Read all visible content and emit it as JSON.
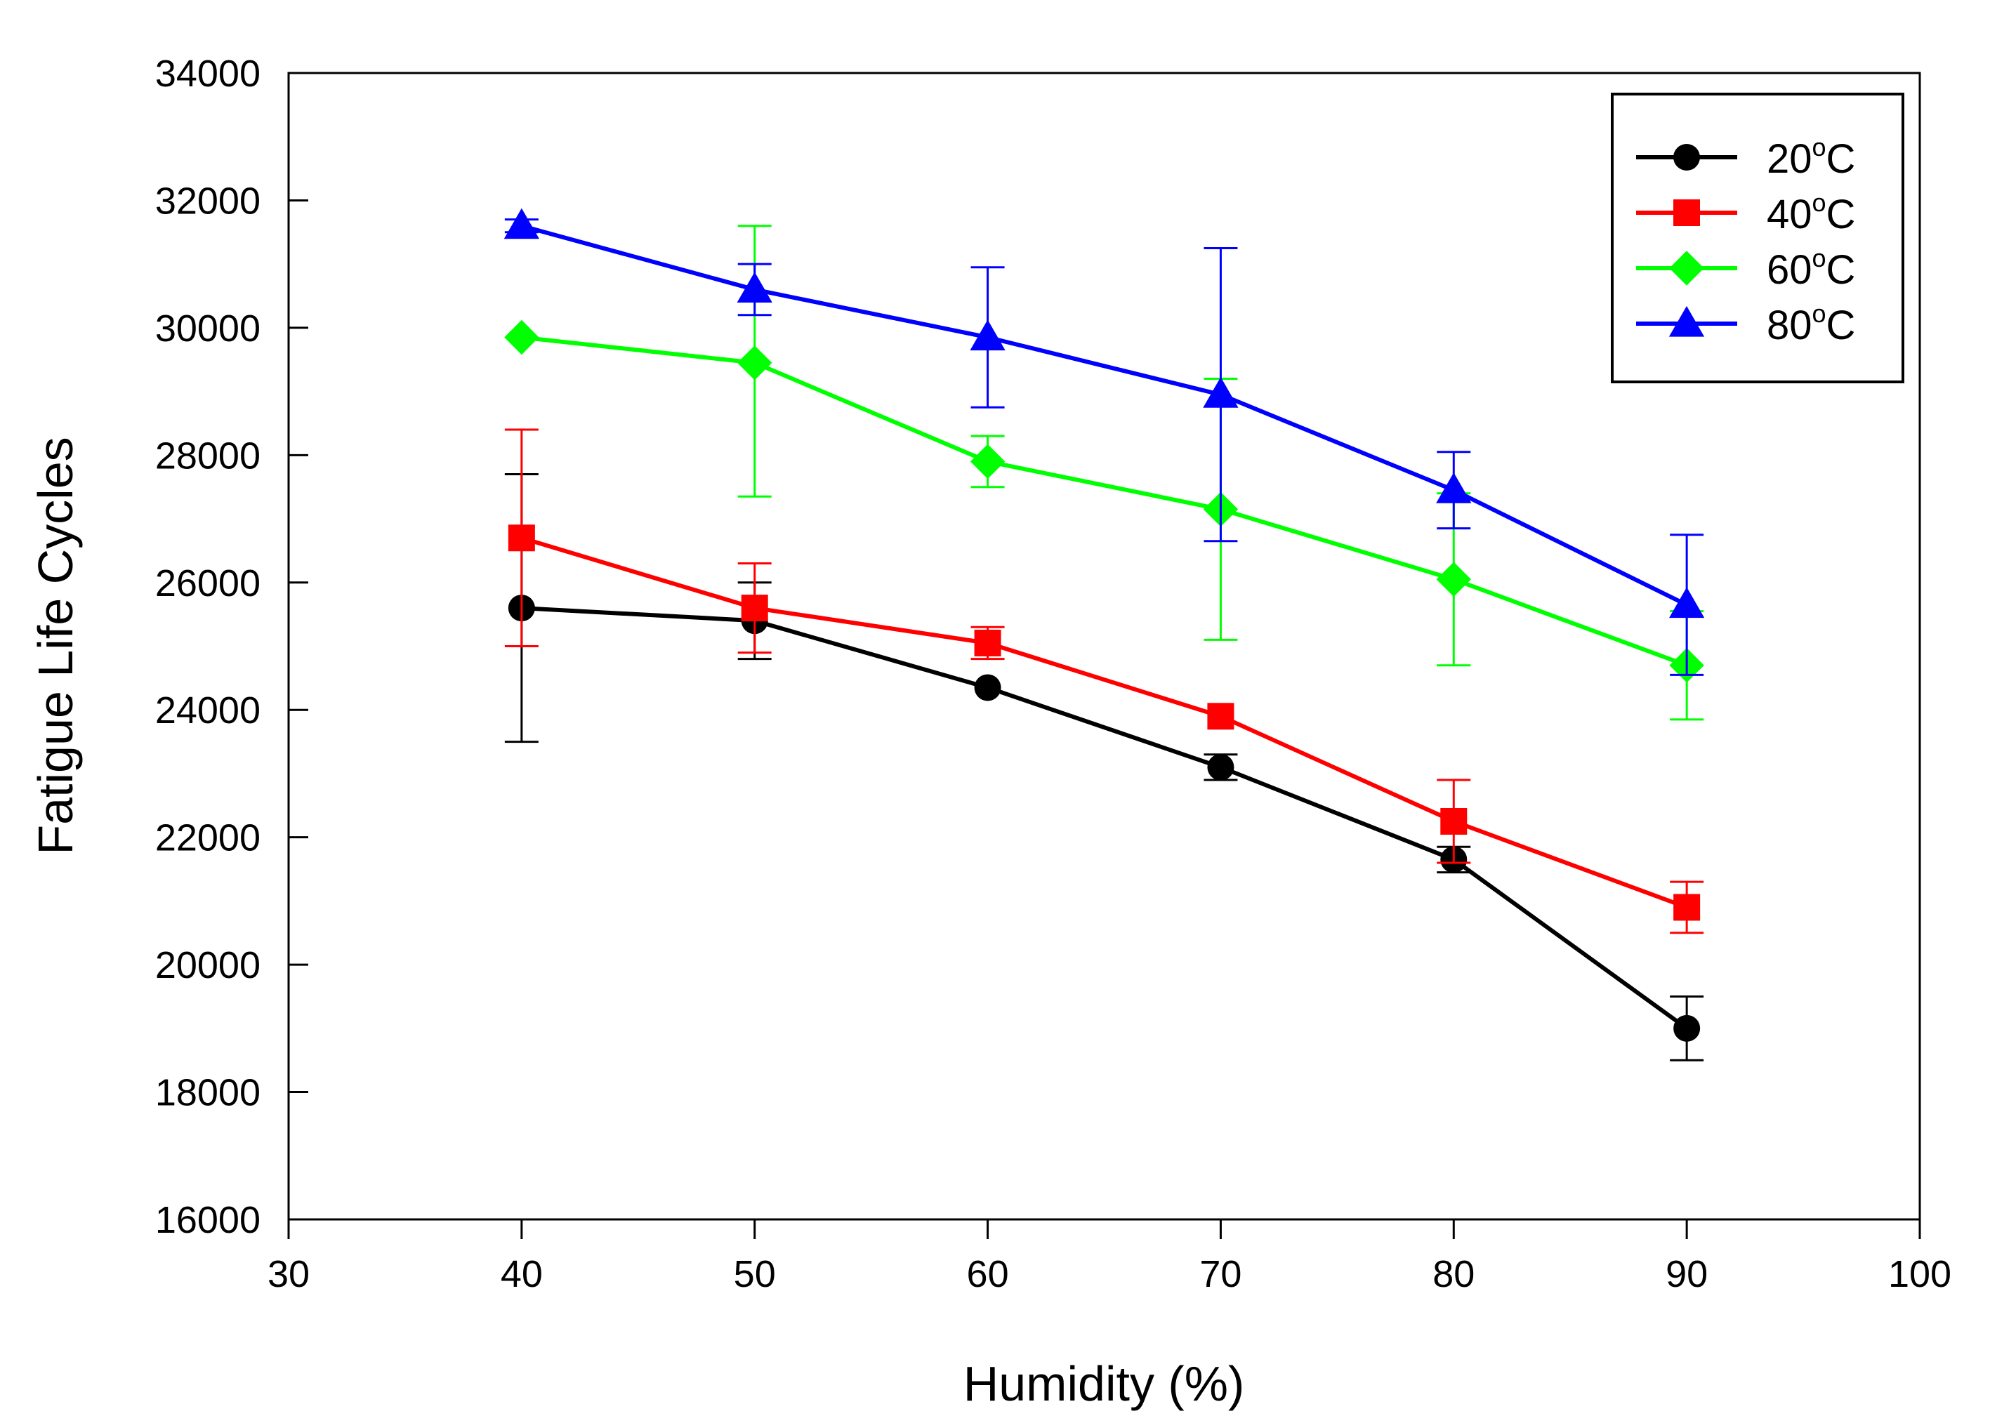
{
  "chart_data": {
    "type": "line",
    "title": "",
    "xlabel": "Humidity (%)",
    "ylabel": "Fatigue Life Cycles",
    "xlim": [
      30,
      100
    ],
    "ylim": [
      16000,
      34000
    ],
    "xticks": [
      30,
      40,
      50,
      60,
      70,
      80,
      90,
      100
    ],
    "yticks": [
      16000,
      18000,
      20000,
      22000,
      24000,
      26000,
      28000,
      30000,
      32000,
      34000
    ],
    "grid": false,
    "legend_position": "top-right",
    "x": [
      40,
      50,
      60,
      70,
      80,
      90
    ],
    "series": [
      {
        "name": "20",
        "unit": "C",
        "degree": "o",
        "color": "#000000",
        "marker": "circle",
        "values": [
          25600,
          25400,
          24350,
          23100,
          21650,
          19000
        ],
        "err_low": [
          2100,
          600,
          0,
          200,
          200,
          500
        ],
        "err_high": [
          2100,
          600,
          0,
          200,
          200,
          500
        ]
      },
      {
        "name": "40",
        "unit": "C",
        "degree": "o",
        "color": "#ff0000",
        "marker": "square",
        "values": [
          26700,
          25600,
          25050,
          23900,
          22250,
          20900
        ],
        "err_low": [
          1700,
          700,
          250,
          0,
          650,
          400
        ],
        "err_high": [
          1700,
          700,
          250,
          0,
          650,
          400
        ]
      },
      {
        "name": "60",
        "unit": "C",
        "degree": "o",
        "color": "#00ff00",
        "marker": "diamond",
        "values": [
          29850,
          29450,
          27900,
          27150,
          26050,
          24700
        ],
        "err_low": [
          0,
          2100,
          400,
          2050,
          1350,
          850
        ],
        "err_high": [
          0,
          2150,
          400,
          2050,
          1350,
          850
        ]
      },
      {
        "name": "80",
        "unit": "C",
        "degree": "o",
        "color": "#0000ff",
        "marker": "triangle",
        "values": [
          31600,
          30600,
          29850,
          28950,
          27450,
          25650
        ],
        "err_low": [
          100,
          400,
          1100,
          2300,
          600,
          1100
        ],
        "err_high": [
          100,
          400,
          1100,
          2300,
          600,
          1100
        ]
      }
    ]
  }
}
